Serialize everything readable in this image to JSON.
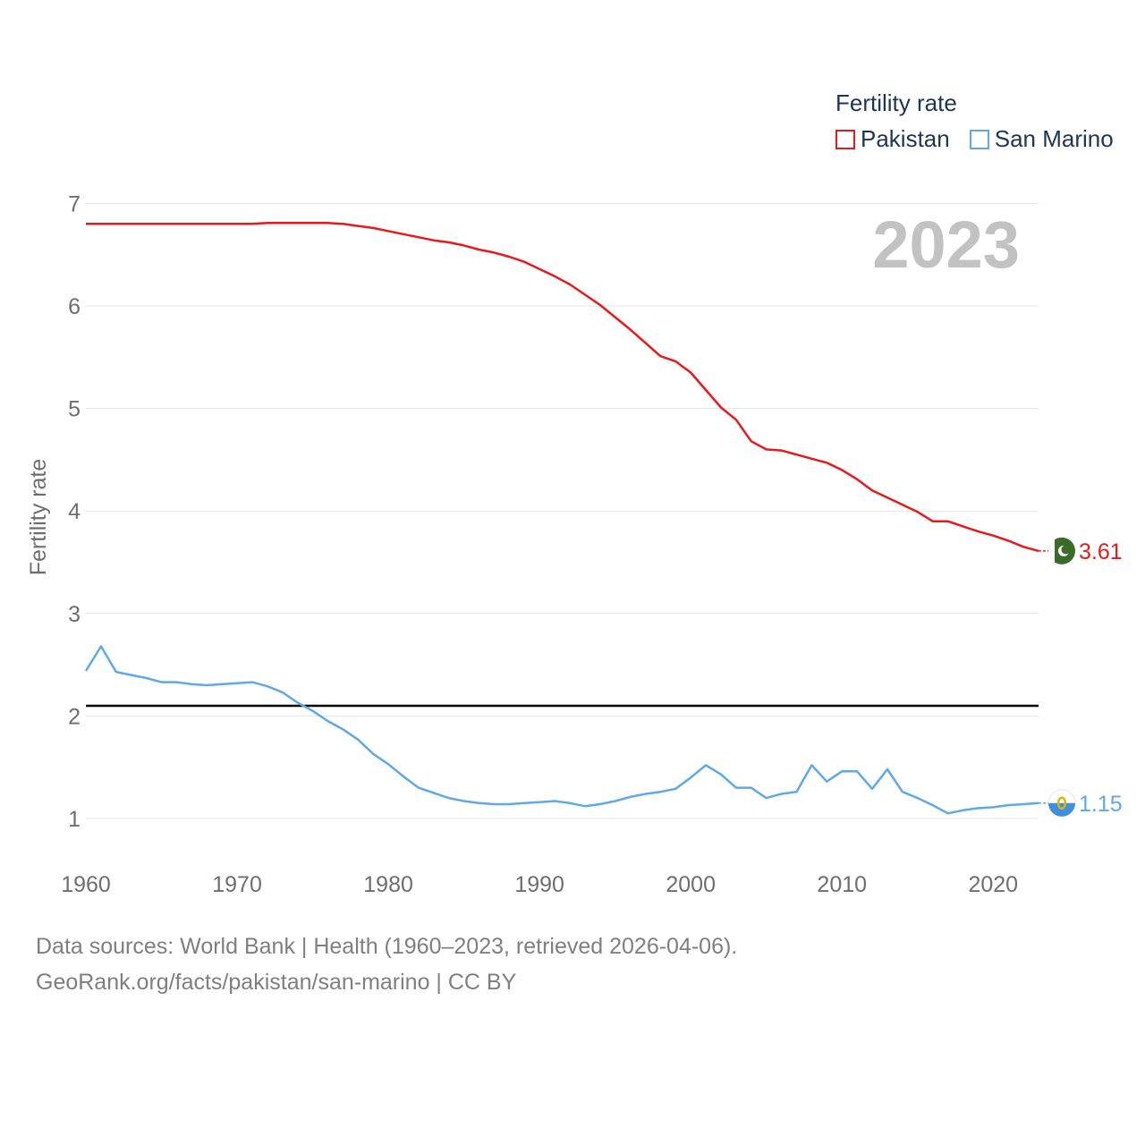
{
  "legend": {
    "title": "Fertility rate",
    "items": [
      {
        "label": "Pakistan",
        "color": "#e8191b"
      },
      {
        "label": "San Marino",
        "color": "#5ea9e6"
      }
    ]
  },
  "footer": {
    "line1": "Data sources: World Bank | Health (1960–2023, retrieved 2026-04-06).",
    "line2": "GeoRank.org/facts/pakistan/san-marino | CC BY"
  },
  "chart_data": {
    "type": "line",
    "title": "Fertility rate",
    "year_label": "2023",
    "ylabel": "Fertility rate",
    "xlabel": "",
    "xlim": [
      1960,
      2023
    ],
    "ylim": [
      0.5,
      7
    ],
    "xticks": [
      1960,
      1970,
      1980,
      1990,
      2000,
      2010,
      2020
    ],
    "yticks": [
      1,
      2,
      3,
      4,
      5,
      6,
      7
    ],
    "grid": true,
    "reference_line": {
      "value": 2.1,
      "color": "#000000"
    },
    "x": [
      1960,
      1961,
      1962,
      1963,
      1964,
      1965,
      1966,
      1967,
      1968,
      1969,
      1970,
      1971,
      1972,
      1973,
      1974,
      1975,
      1976,
      1977,
      1978,
      1979,
      1980,
      1981,
      1982,
      1983,
      1984,
      1985,
      1986,
      1987,
      1988,
      1989,
      1990,
      1991,
      1992,
      1993,
      1994,
      1995,
      1996,
      1997,
      1998,
      1999,
      2000,
      2001,
      2002,
      2003,
      2004,
      2005,
      2006,
      2007,
      2008,
      2009,
      2010,
      2011,
      2012,
      2013,
      2014,
      2015,
      2016,
      2017,
      2018,
      2019,
      2020,
      2021,
      2022,
      2023
    ],
    "series": [
      {
        "name": "Pakistan",
        "color": "#e8191b",
        "end_label": "3.61",
        "values": [
          6.8,
          6.8,
          6.8,
          6.8,
          6.8,
          6.8,
          6.8,
          6.8,
          6.8,
          6.8,
          6.8,
          6.8,
          6.81,
          6.81,
          6.81,
          6.81,
          6.81,
          6.8,
          6.78,
          6.76,
          6.73,
          6.7,
          6.67,
          6.64,
          6.62,
          6.59,
          6.55,
          6.52,
          6.48,
          6.43,
          6.36,
          6.29,
          6.21,
          6.11,
          6.01,
          5.89,
          5.77,
          5.64,
          5.51,
          5.46,
          5.35,
          5.18,
          5.01,
          4.89,
          4.68,
          4.6,
          4.59,
          4.55,
          4.51,
          4.47,
          4.4,
          4.31,
          4.2,
          4.13,
          4.06,
          3.99,
          3.9,
          3.9,
          3.85,
          3.8,
          3.76,
          3.71,
          3.65,
          3.61
        ]
      },
      {
        "name": "San Marino",
        "color": "#5ea9e6",
        "end_label": "1.15",
        "values": [
          2.44,
          2.68,
          2.43,
          2.4,
          2.37,
          2.33,
          2.33,
          2.31,
          2.3,
          2.31,
          2.32,
          2.33,
          2.29,
          2.23,
          2.13,
          2.05,
          1.95,
          1.87,
          1.77,
          1.63,
          1.53,
          1.41,
          1.3,
          1.25,
          1.2,
          1.17,
          1.15,
          1.14,
          1.14,
          1.15,
          1.16,
          1.17,
          1.15,
          1.12,
          1.14,
          1.17,
          1.21,
          1.24,
          1.26,
          1.29,
          1.4,
          1.52,
          1.43,
          1.3,
          1.3,
          1.2,
          1.24,
          1.26,
          1.52,
          1.36,
          1.46,
          1.46,
          1.29,
          1.48,
          1.26,
          1.2,
          1.13,
          1.05,
          1.08,
          1.1,
          1.11,
          1.13,
          1.14,
          1.15
        ]
      }
    ]
  }
}
